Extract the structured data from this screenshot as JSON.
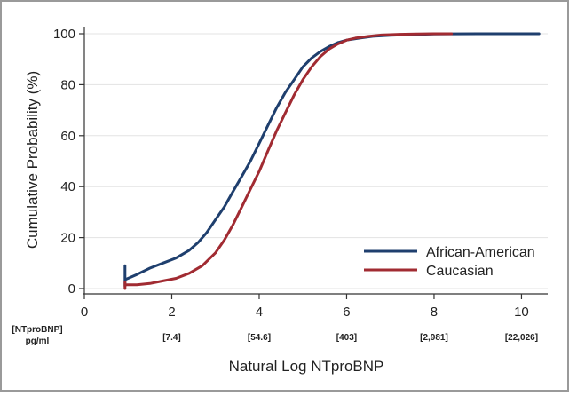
{
  "chart_data": {
    "type": "line",
    "xlabel": "Natural Log NTproBNP",
    "ylabel": "Cumulative Probability (%)",
    "xlim": [
      0,
      10.6
    ],
    "ylim": [
      0,
      100
    ],
    "x_ticks": [
      0,
      2,
      4,
      6,
      8,
      10
    ],
    "y_ticks": [
      0,
      20,
      40,
      60,
      80,
      100
    ],
    "original_scale": {
      "header": [
        "[NTproBNP]",
        "pg/ml"
      ],
      "ticks": [
        {
          "x": 2,
          "label": "[7.4]"
        },
        {
          "x": 4,
          "label": "[54.6]"
        },
        {
          "x": 6,
          "label": "[403]"
        },
        {
          "x": 8,
          "label": "[2,981]"
        },
        {
          "x": 10,
          "label": "[22,026]"
        }
      ]
    },
    "grid": "horizontal",
    "legend_position": "bottom-right",
    "series": [
      {
        "name": "African-American",
        "color": "#1f3f6e",
        "x": [
          0.93,
          0.93,
          0.93,
          1.2,
          1.5,
          1.8,
          2.1,
          2.4,
          2.6,
          2.8,
          3.0,
          3.2,
          3.4,
          3.6,
          3.8,
          4.0,
          4.2,
          4.4,
          4.6,
          4.8,
          5.0,
          5.2,
          5.4,
          5.6,
          5.8,
          6.0,
          6.3,
          6.6,
          7.0,
          7.5,
          8.0,
          9.0,
          10.4
        ],
        "y": [
          9,
          1,
          3.5,
          5.5,
          8,
          10,
          12,
          15,
          18,
          22,
          27,
          32,
          38,
          44,
          50,
          57,
          64,
          71,
          77,
          82,
          87,
          90.5,
          93,
          95,
          96.5,
          97.5,
          98.3,
          99,
          99.4,
          99.7,
          99.9,
          100,
          100
        ]
      },
      {
        "name": "Caucasian",
        "color": "#a12b32",
        "x": [
          0.93,
          0.93,
          0.93,
          1.2,
          1.5,
          1.8,
          2.1,
          2.4,
          2.7,
          3.0,
          3.2,
          3.4,
          3.6,
          3.8,
          4.0,
          4.2,
          4.4,
          4.6,
          4.8,
          5.0,
          5.2,
          5.4,
          5.6,
          5.8,
          6.0,
          6.2,
          6.5,
          6.8,
          7.2,
          7.6,
          8.0,
          8.4
        ],
        "y": [
          0,
          2.5,
          1.5,
          1.5,
          2,
          3,
          4,
          6,
          9,
          14,
          19,
          25,
          32,
          39,
          46,
          54,
          62,
          69,
          76,
          82,
          87,
          91,
          94,
          96,
          97.5,
          98.3,
          99,
          99.5,
          99.8,
          99.9,
          100,
          100
        ]
      }
    ]
  }
}
